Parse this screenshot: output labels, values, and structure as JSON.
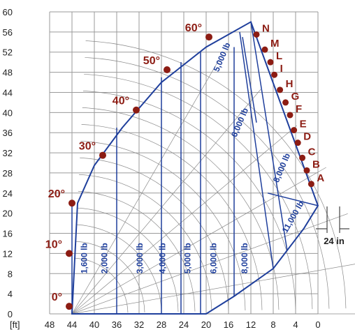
{
  "chart_data": {
    "type": "load-chart",
    "x_unit_label": "[ft]",
    "x_ticks": [
      "48",
      "44",
      "40",
      "36",
      "32",
      "28",
      "24",
      "20",
      "16",
      "12",
      "8",
      "4",
      "0"
    ],
    "y_ticks": [
      "0",
      "4",
      "8",
      "12",
      "16",
      "20",
      "24",
      "28",
      "32",
      "36",
      "40",
      "44",
      "48",
      "52",
      "56",
      "60"
    ],
    "xlim": [
      0,
      48
    ],
    "ylim": [
      0,
      60
    ],
    "x_reversed": true,
    "grid": true,
    "boom_angles": [
      {
        "label": "0°",
        "x": 44.5,
        "y": 1.5
      },
      {
        "label": "10°",
        "x": 44.5,
        "y": 12
      },
      {
        "label": "20°",
        "x": 44,
        "y": 22
      },
      {
        "label": "30°",
        "x": 38.5,
        "y": 31.5
      },
      {
        "label": "40°",
        "x": 32.5,
        "y": 40.5
      },
      {
        "label": "50°",
        "x": 27,
        "y": 48.5
      },
      {
        "label": "60°",
        "x": 19.5,
        "y": 55
      }
    ],
    "extension_marks": [
      {
        "label": "N",
        "x": 11,
        "y": 55.5
      },
      {
        "label": "M",
        "x": 9.5,
        "y": 52.5
      },
      {
        "label": "L",
        "x": 8.5,
        "y": 50
      },
      {
        "label": "I",
        "x": 7.8,
        "y": 47.5
      },
      {
        "label": "H",
        "x": 6.8,
        "y": 44.5
      },
      {
        "label": "G",
        "x": 5.8,
        "y": 42
      },
      {
        "label": "F",
        "x": 5,
        "y": 39.5
      },
      {
        "label": "E",
        "x": 4.3,
        "y": 36.5
      },
      {
        "label": "D",
        "x": 3.6,
        "y": 34
      },
      {
        "label": "C",
        "x": 2.8,
        "y": 31
      },
      {
        "label": "B",
        "x": 2,
        "y": 28.5
      },
      {
        "label": "A",
        "x": 1.2,
        "y": 25.8
      }
    ],
    "load_zones": [
      {
        "label": "1,600 lb",
        "x": 41.3,
        "y": 8,
        "rot": -90
      },
      {
        "label": "2,000 lb",
        "x": 37.7,
        "y": 8,
        "rot": -90
      },
      {
        "label": "3,000 lb",
        "x": 31.4,
        "y": 8,
        "rot": -90
      },
      {
        "label": "4,000 lb",
        "x": 27.3,
        "y": 8,
        "rot": -90
      },
      {
        "label": "5,000 lb",
        "x": 22.8,
        "y": 8,
        "rot": -90
      },
      {
        "label": "6,000 lb",
        "x": 18.2,
        "y": 8,
        "rot": -90
      },
      {
        "label": "8,000 lb",
        "x": 12.6,
        "y": 8,
        "rot": -90
      },
      {
        "label": "11,000 lb",
        "x": 5.6,
        "y": 16,
        "rot": -60
      },
      {
        "label": "8,000 lb",
        "x": 7.1,
        "y": 26,
        "rot": -67
      },
      {
        "label": "6,000 lb",
        "x": 14.6,
        "y": 35,
        "rot": -67
      },
      {
        "label": "5,000 lb",
        "x": 17.8,
        "y": 48,
        "rot": -67
      }
    ],
    "envelope": [
      [
        12,
        58
      ],
      [
        0,
        21.5
      ],
      [
        2.5,
        17
      ],
      [
        8,
        9
      ],
      [
        15,
        3.5
      ],
      [
        20,
        0
      ],
      [
        44,
        0
      ],
      [
        43,
        22
      ],
      [
        40,
        29.5
      ],
      [
        35,
        37
      ],
      [
        28,
        46
      ],
      [
        20,
        53
      ],
      [
        12,
        58
      ]
    ],
    "zone_boundaries": [
      [
        [
          44,
          0
        ],
        [
          44,
          22
        ]
      ],
      [
        [
          36,
          0
        ],
        [
          36,
          37
        ]
      ],
      [
        [
          28,
          0
        ],
        [
          28,
          47
        ]
      ],
      [
        [
          24.5,
          0
        ],
        [
          24.5,
          50
        ]
      ],
      [
        [
          21,
          0
        ],
        [
          21,
          52
        ]
      ],
      [
        [
          15,
          3.5
        ],
        [
          15,
          53
        ]
      ],
      [
        [
          8,
          9
        ],
        [
          14,
          56
        ]
      ],
      [
        [
          5.5,
          12.5
        ],
        [
          12,
          58
        ]
      ],
      [
        [
          0,
          21.5
        ],
        [
          9,
          24
        ]
      ],
      [
        [
          11,
          38
        ],
        [
          13.5,
          55
        ]
      ]
    ],
    "extension_note": "24 in"
  }
}
